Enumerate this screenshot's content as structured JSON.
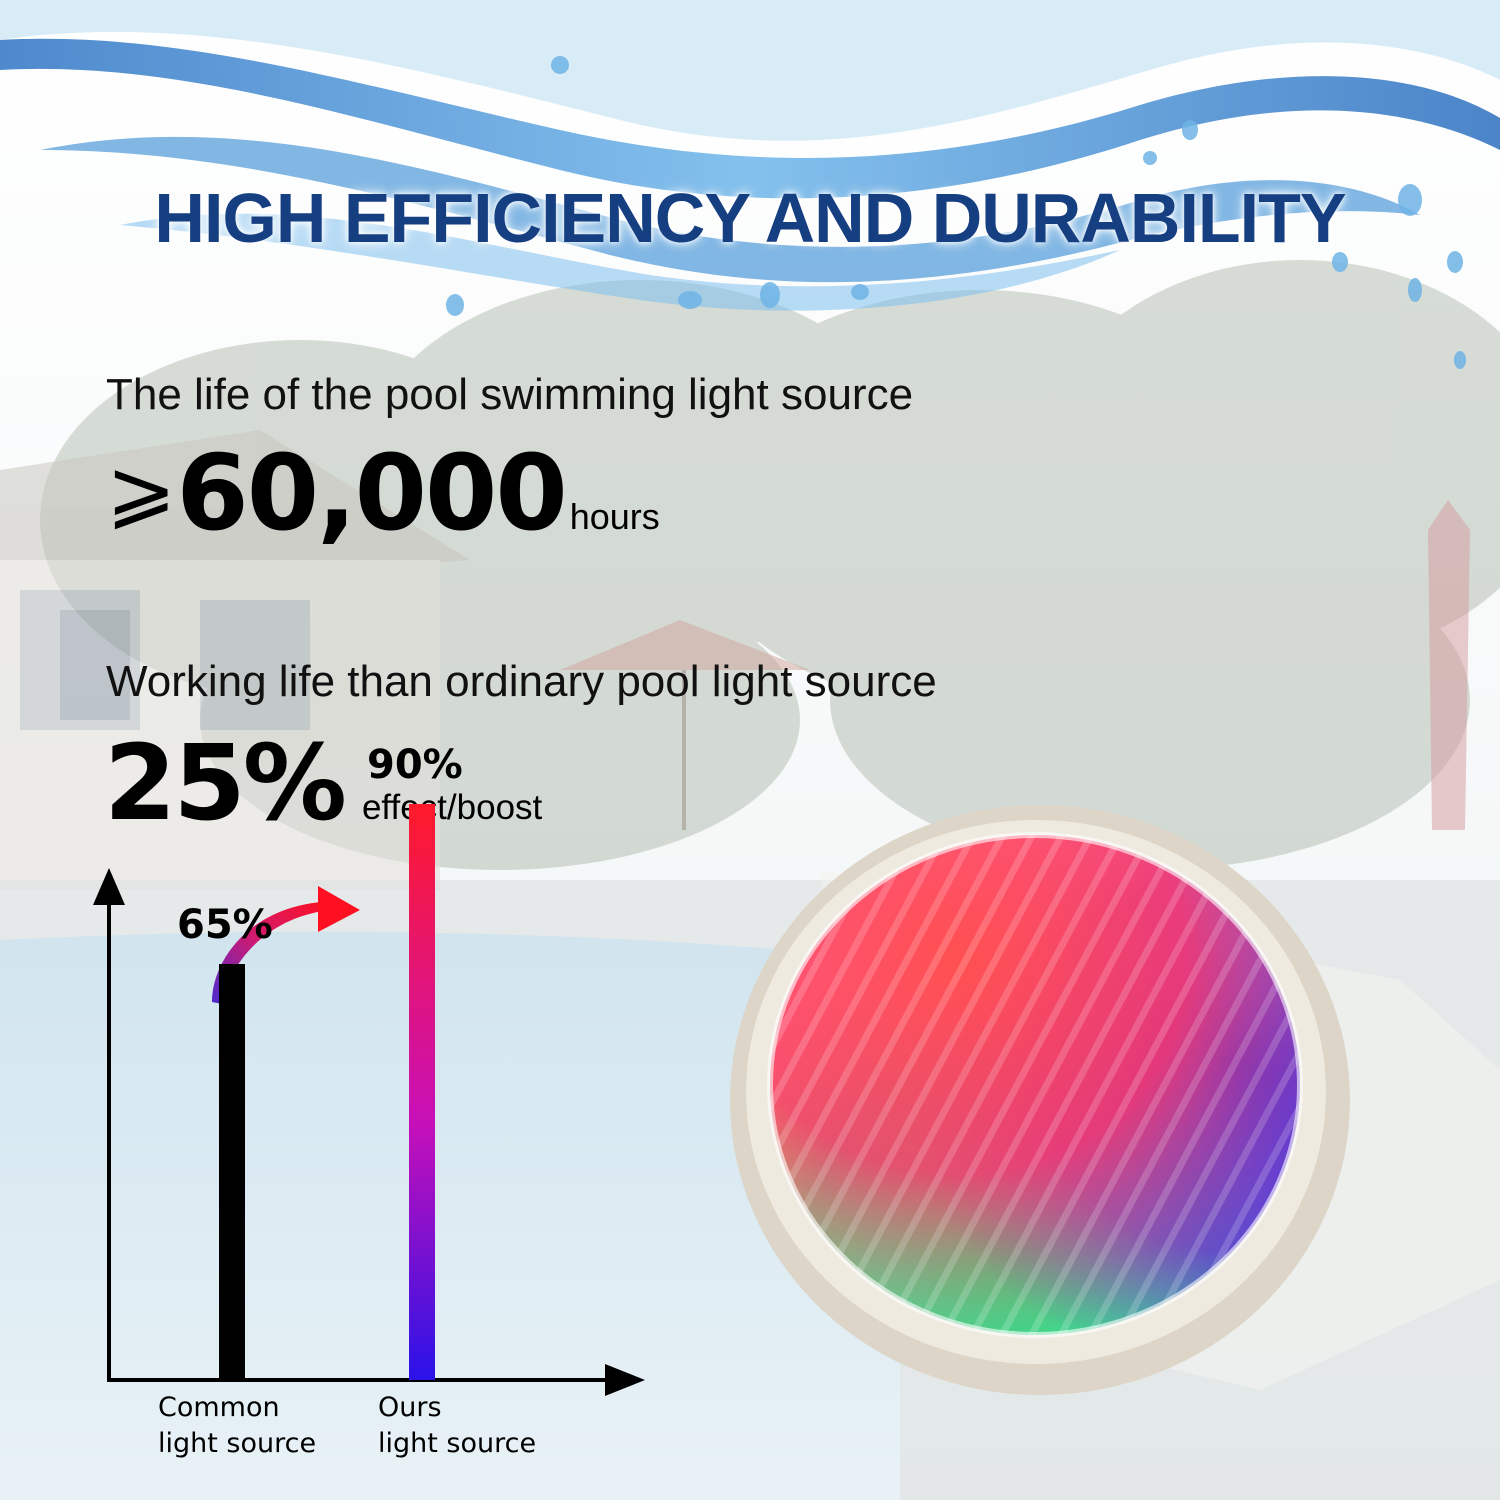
{
  "headline": "HIGH EFFICIENCY AND DURABILITY",
  "life": {
    "label": "The life of the pool swimming light source",
    "symbol": "⩾",
    "value": "60,000",
    "unit": "hours"
  },
  "working": {
    "label": "Working life than ordinary pool light source",
    "value": "25%",
    "unit": "effect/boost"
  },
  "chart_data": {
    "type": "bar",
    "categories": [
      "Common light source",
      "Ours light source"
    ],
    "category_lines": [
      [
        "Common",
        "light source"
      ],
      [
        "Ours",
        "light source"
      ]
    ],
    "values": [
      65,
      90
    ],
    "data_labels": [
      "65%",
      "90%"
    ],
    "title": "",
    "xlabel": "",
    "ylabel": "",
    "ylim": [
      0,
      100
    ],
    "grid": false,
    "legend": "none",
    "colors": [
      "#000000",
      "gradient #ff1a2a → #a010d8 → #2a12e8"
    ]
  },
  "colors": {
    "headline": "#163f82",
    "water": "#3f8fd6",
    "text": "#000000"
  },
  "icons": {
    "arrow": "curved-red-arrow-icon",
    "product": "rgb-pool-light-icon"
  }
}
